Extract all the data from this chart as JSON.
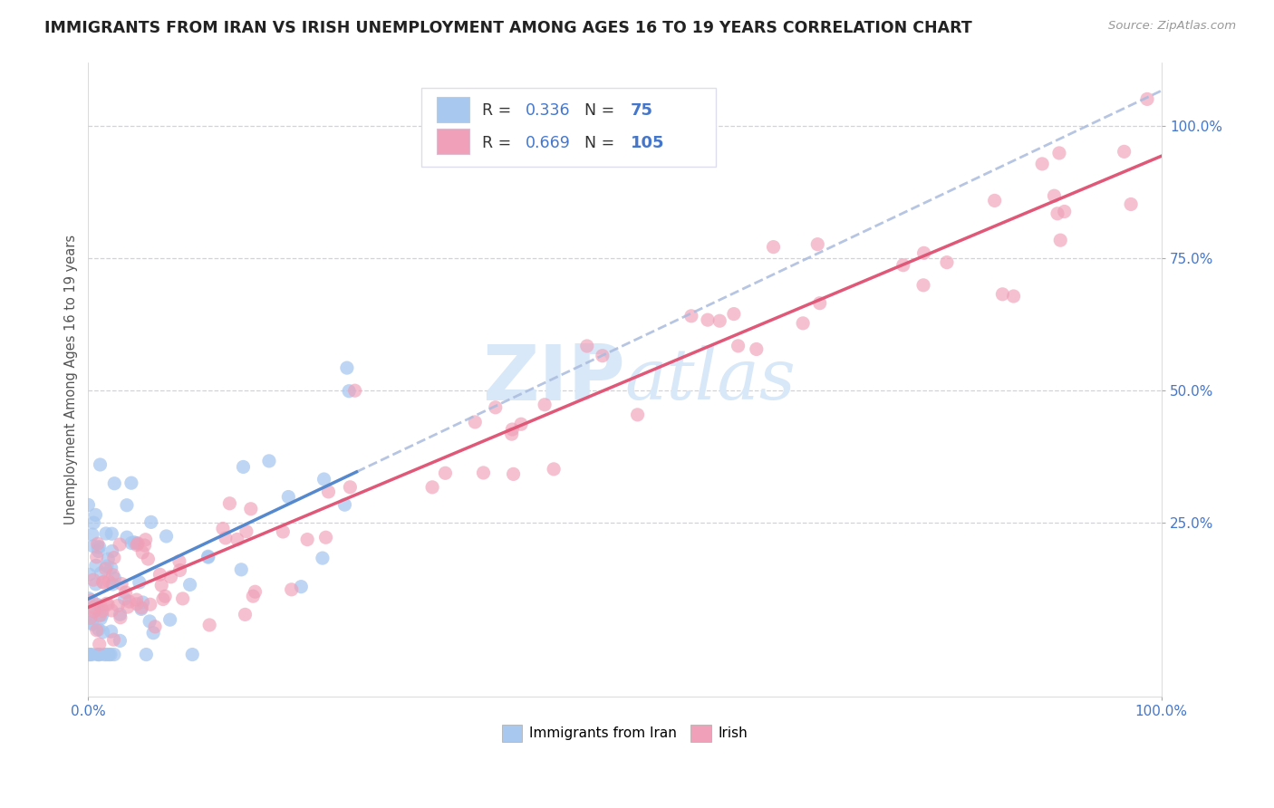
{
  "title": "IMMIGRANTS FROM IRAN VS IRISH UNEMPLOYMENT AMONG AGES 16 TO 19 YEARS CORRELATION CHART",
  "source": "Source: ZipAtlas.com",
  "ylabel": "Unemployment Among Ages 16 to 19 years",
  "xlim": [
    0.0,
    1.0
  ],
  "ylim": [
    -0.08,
    1.12
  ],
  "iran_R": "0.336",
  "iran_N": "75",
  "irish_R": "0.669",
  "irish_N": "105",
  "iran_color": "#a8c8f0",
  "irish_color": "#f0a0b8",
  "iran_line_color": "#5588cc",
  "irish_line_color": "#e05878",
  "dashed_line_color": "#aabbdd",
  "background_color": "#ffffff",
  "grid_color": "#ccccdd",
  "watermark_color": "#d8e8f8",
  "title_color": "#222222",
  "source_color": "#999999",
  "axis_label_color": "#555555",
  "tick_color": "#4477cc"
}
